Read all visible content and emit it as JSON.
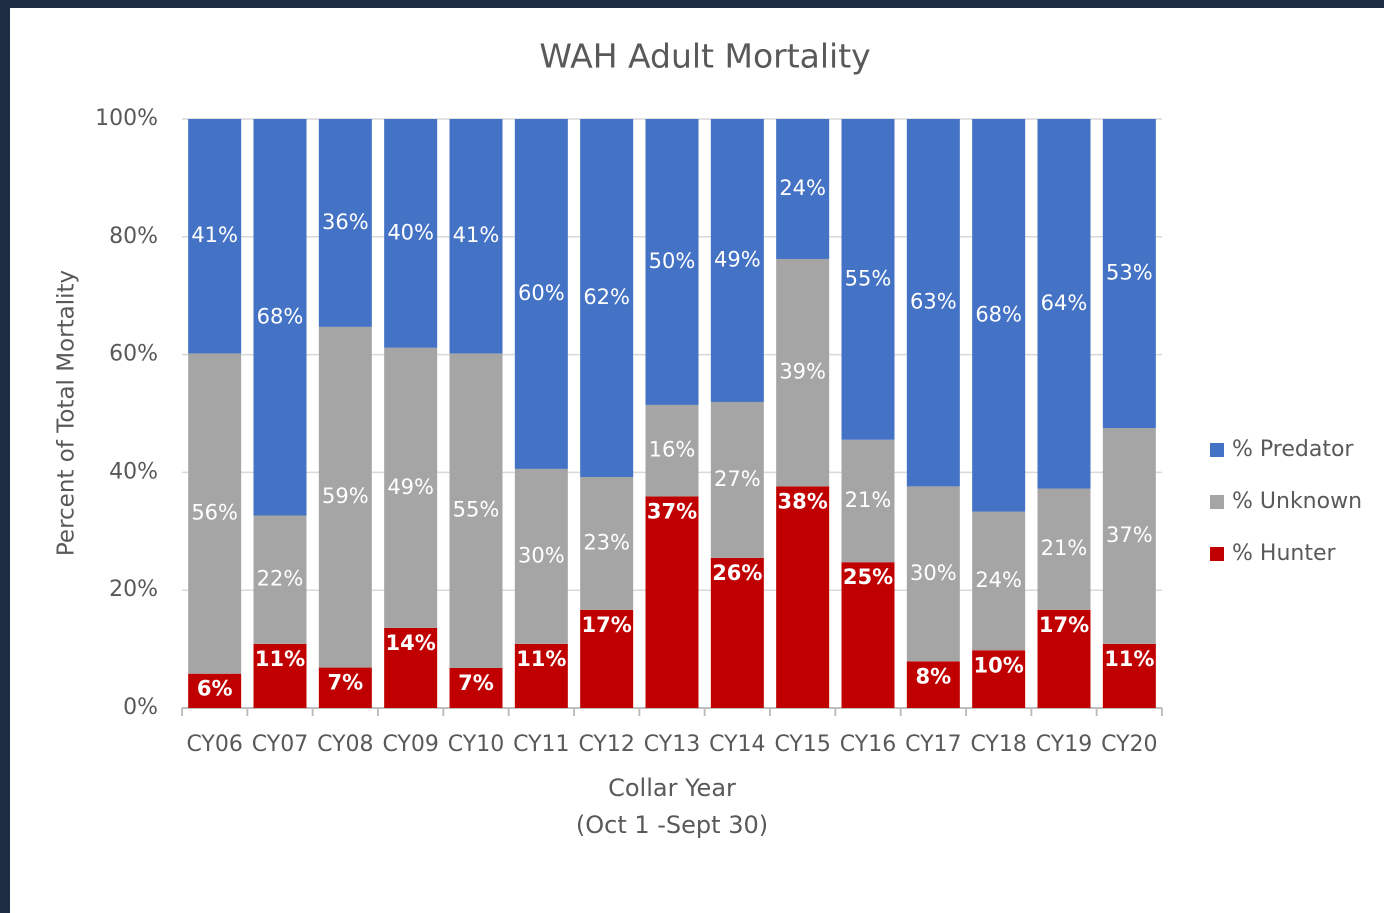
{
  "chart_data": {
    "type": "bar",
    "stacked": "percent",
    "title": "WAH Adult Mortality",
    "x_label": [
      "Collar Year",
      "(Oct 1 -Sept 30)"
    ],
    "y_label": "Percent of Total Mortality",
    "categories": [
      "CY06",
      "CY07",
      "CY08",
      "CY09",
      "CY10",
      "CY11",
      "CY12",
      "CY13",
      "CY14",
      "CY15",
      "CY16",
      "CY17",
      "CY18",
      "CY19",
      "CY20"
    ],
    "series": [
      {
        "name": "% Hunter",
        "color": "#c00000",
        "values": [
          6,
          11,
          7,
          14,
          7,
          11,
          17,
          37,
          26,
          38,
          25,
          8,
          10,
          17,
          11
        ],
        "value_labels": [
          "6%",
          "11%",
          "7%",
          "14%",
          "7%",
          "11%",
          "17%",
          "37%",
          "26%",
          "38%",
          "25%",
          "8%",
          "10%",
          "17%",
          "11%"
        ]
      },
      {
        "name": "% Unknown",
        "color": "#a5a5a5",
        "values": [
          56,
          22,
          59,
          49,
          55,
          30,
          23,
          16,
          27,
          39,
          21,
          30,
          24,
          21,
          37
        ],
        "value_labels": [
          "56%",
          "22%",
          "59%",
          "49%",
          "55%",
          "30%",
          "23%",
          "16%",
          "27%",
          "39%",
          "21%",
          "30%",
          "24%",
          "21%",
          "37%"
        ]
      },
      {
        "name": "% Predator",
        "color": "#4472c4",
        "values": [
          41,
          68,
          36,
          40,
          41,
          60,
          62,
          50,
          49,
          24,
          55,
          63,
          68,
          64,
          53
        ],
        "value_labels": [
          "41%",
          "68%",
          "36%",
          "40%",
          "41%",
          "60%",
          "62%",
          "50%",
          "49%",
          "24%",
          "55%",
          "63%",
          "68%",
          "64%",
          "53%"
        ]
      }
    ],
    "ylim": [
      0,
      100
    ],
    "yticks": [
      {
        "value": 0,
        "label": "0%"
      },
      {
        "value": 20,
        "label": "20%"
      },
      {
        "value": 40,
        "label": "40%"
      },
      {
        "value": 60,
        "label": "60%"
      },
      {
        "value": 80,
        "label": "80%"
      },
      {
        "value": 100,
        "label": "100%"
      }
    ],
    "grid": true,
    "legend": "right"
  }
}
